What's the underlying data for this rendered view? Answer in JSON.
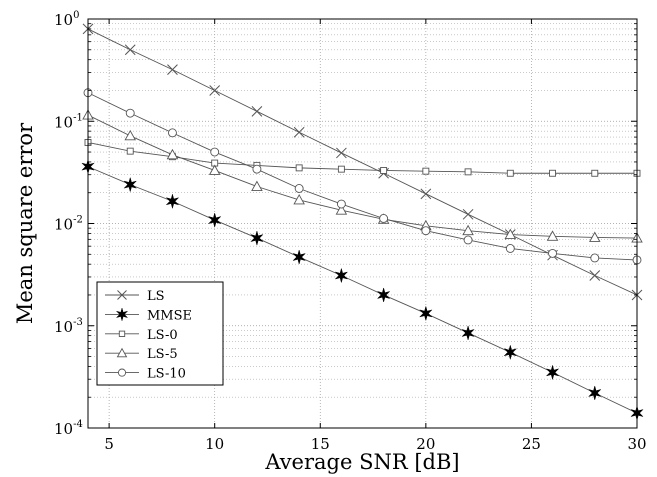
{
  "chart_data": {
    "type": "line",
    "xlabel": "Average  SNR  [dB]",
    "ylabel": "Mean  square  error",
    "xlim": [
      4,
      30
    ],
    "ylim": [
      0.0001,
      1
    ],
    "yscale": "log",
    "grid": true,
    "legend_position": "bottom-left",
    "x_ticks": [
      "5",
      "10",
      "15",
      "20",
      "25",
      "30"
    ],
    "y_tick_base": "10",
    "y_tick_exponents": [
      "-4",
      "-3",
      "-2",
      "-1",
      "0"
    ],
    "series": [
      {
        "name": "LS",
        "marker": "x",
        "x": [
          4,
          6,
          8,
          10,
          12,
          14,
          16,
          18,
          20,
          22,
          24,
          26,
          28,
          30
        ],
        "y": [
          0.8,
          0.5,
          0.32,
          0.2,
          0.125,
          0.078,
          0.049,
          0.031,
          0.0195,
          0.0123,
          0.0078,
          0.0049,
          0.0031,
          0.002
        ]
      },
      {
        "name": "MMSE",
        "marker": "star",
        "x": [
          4,
          6,
          8,
          10,
          12,
          14,
          16,
          18,
          20,
          22,
          24,
          26,
          28,
          30
        ],
        "y": [
          0.036,
          0.024,
          0.0165,
          0.0108,
          0.0072,
          0.0047,
          0.0031,
          0.002,
          0.00132,
          0.00085,
          0.00055,
          0.00035,
          0.00022,
          0.00014
        ]
      },
      {
        "name": "LS-0",
        "marker": "square",
        "x": [
          4,
          6,
          8,
          10,
          12,
          14,
          16,
          18,
          20,
          22,
          24,
          26,
          28,
          30
        ],
        "y": [
          0.062,
          0.051,
          0.045,
          0.039,
          0.037,
          0.035,
          0.034,
          0.033,
          0.0325,
          0.032,
          0.031,
          0.031,
          0.031,
          0.031
        ]
      },
      {
        "name": "LS-5",
        "marker": "triangle",
        "x": [
          4,
          6,
          8,
          10,
          12,
          14,
          16,
          18,
          20,
          22,
          24,
          26,
          28,
          30
        ],
        "y": [
          0.115,
          0.072,
          0.047,
          0.033,
          0.023,
          0.017,
          0.0135,
          0.011,
          0.0095,
          0.0085,
          0.0078,
          0.0075,
          0.0073,
          0.0072
        ]
      },
      {
        "name": "LS-10",
        "marker": "circle",
        "x": [
          4,
          6,
          8,
          10,
          12,
          14,
          16,
          18,
          20,
          22,
          24,
          26,
          28,
          30
        ],
        "y": [
          0.19,
          0.12,
          0.077,
          0.05,
          0.034,
          0.022,
          0.0155,
          0.0112,
          0.0085,
          0.0069,
          0.0057,
          0.0051,
          0.0046,
          0.0044
        ]
      }
    ]
  }
}
